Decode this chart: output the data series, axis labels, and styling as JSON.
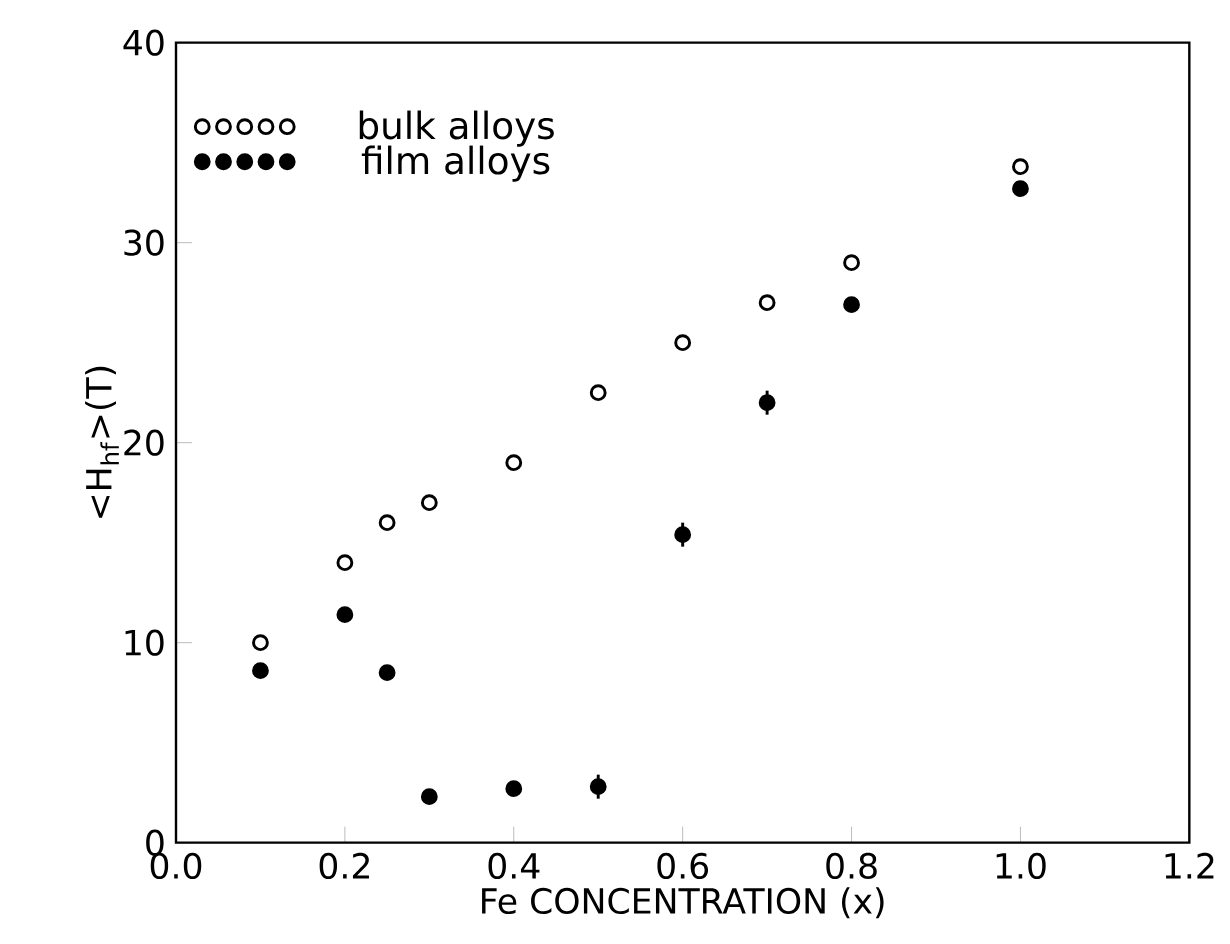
{
  "chart_data": {
    "type": "scatter",
    "xlabel": "Fe CONCENTRATION (x)",
    "ylabel": "<H$_{hf}$>(T)",
    "xlim": [
      0,
      1.2
    ],
    "ylim": [
      0,
      40
    ],
    "xticks": [
      {
        "value": 0,
        "label": "0.0"
      },
      0.2,
      0.4,
      0.6,
      0.8,
      {
        "value": 1,
        "label": "1.0"
      },
      1.2
    ],
    "yticks": [
      0,
      10,
      20,
      30,
      40
    ],
    "legend": "top left",
    "marker": "circle",
    "grid": false,
    "series": [
      {
        "name": "bulk alloys",
        "color": "#000000",
        "x": [
          0.1,
          0.2,
          0.25,
          0.3,
          0.4,
          0.5,
          0.6,
          0.7,
          0.8,
          1.0
        ],
        "values": [
          10,
          14,
          16,
          17,
          19,
          22.5,
          25,
          27,
          29,
          33.8
        ]
      },
      {
        "name": "film alloys",
        "color": "#000000",
        "x": [
          0.1,
          0.2,
          0.25,
          0.3,
          0.4,
          0.5,
          0.6,
          0.7,
          0.8,
          1.0
        ],
        "values": [
          8.6,
          11.4,
          8.5,
          2.3,
          2.7,
          2.8,
          15.4,
          22.0,
          26.9,
          32.7
        ],
        "errors": [
          null,
          null,
          null,
          null,
          null,
          0.6,
          0.6,
          0.6,
          null,
          null
        ]
      }
    ]
  }
}
